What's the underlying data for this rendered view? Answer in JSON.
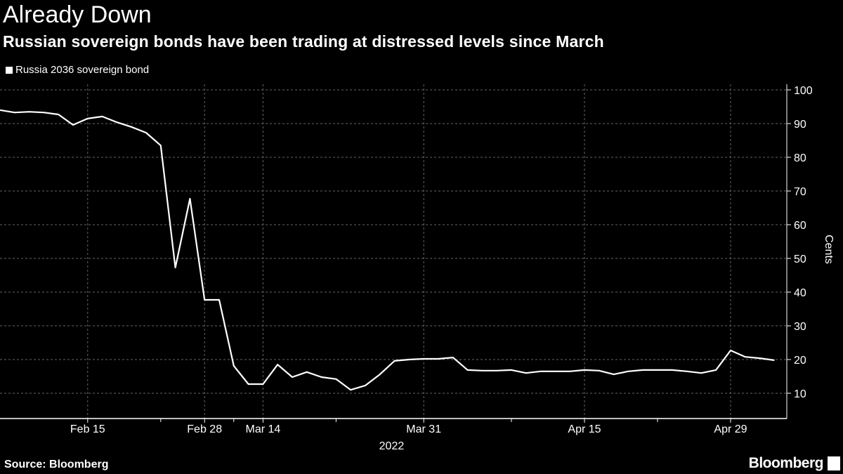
{
  "chart_data": {
    "type": "line",
    "title": "Already Down",
    "subtitle": "Russian sovereign bonds have been trading at distressed levels since March",
    "ylabel": "Cents",
    "ylim": [
      3,
      102
    ],
    "yticks": [
      10,
      20,
      30,
      40,
      50,
      60,
      70,
      80,
      90,
      100
    ],
    "y_axis_side": "right",
    "grid": true,
    "legend": "top-left",
    "x_ticks": [
      {
        "index": 6,
        "label": "Feb 15"
      },
      {
        "index": 14,
        "label": "Feb 28"
      },
      {
        "index": 18,
        "label": "Mar 14"
      },
      {
        "index": 29,
        "label": "Mar 31"
      },
      {
        "index": 40,
        "label": "Apr 15"
      },
      {
        "index": 50,
        "label": "Apr 29"
      }
    ],
    "x_minor_ticks": [
      11,
      16,
      23,
      35,
      45
    ],
    "year_label": "2022",
    "series": [
      {
        "name": "Russia 2036 sovereign bond",
        "color": "#ffffff",
        "values": [
          94.0,
          93.3,
          93.5,
          93.3,
          92.7,
          89.6,
          91.5,
          92.1,
          90.4,
          89.0,
          87.3,
          83.5,
          47.3,
          67.7,
          37.7,
          37.7,
          18.1,
          12.7,
          12.7,
          18.5,
          14.8,
          16.3,
          14.8,
          14.2,
          11.0,
          12.3,
          15.6,
          19.6,
          20.0,
          20.2,
          20.2,
          20.6,
          16.9,
          16.7,
          16.7,
          16.9,
          16.0,
          16.5,
          16.5,
          16.5,
          16.9,
          16.7,
          15.6,
          16.5,
          16.9,
          16.9,
          16.9,
          16.5,
          16.0,
          16.9,
          22.7,
          20.8,
          20.4,
          19.8
        ]
      }
    ]
  },
  "footer": {
    "source": "Source: Bloomberg",
    "brand": "Bloomberg"
  }
}
